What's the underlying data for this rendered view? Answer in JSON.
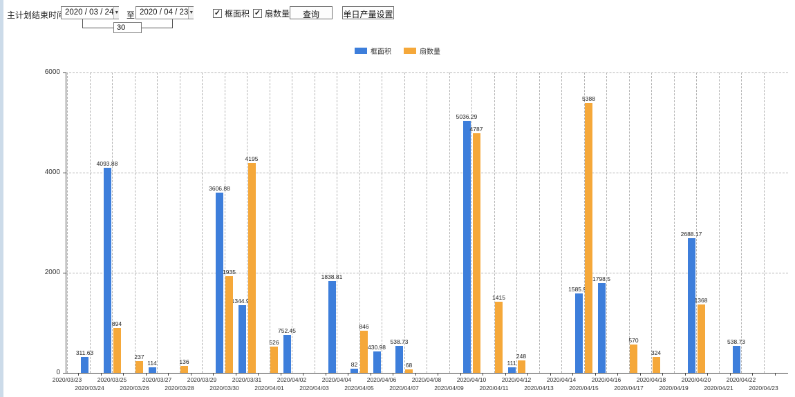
{
  "toolbar": {
    "plan_end_label": "主计划结束时间:",
    "date_from": "2020 / 03 / 24",
    "to_label": "至:",
    "date_to": "2020 / 04 / 23",
    "days_value": "30",
    "checkbox_frame_area": "框面积",
    "checkbox_sash_count": "扇数量",
    "check_glyph": "✓",
    "arrow_glyph": "▼",
    "query_button": "查询",
    "daily_output_button": "单日产量设置"
  },
  "legend": {
    "frame_area": "框面积",
    "sash_count": "扇数量"
  },
  "colors": {
    "frame_area": "#3d7edb",
    "sash_count": "#f5a83a",
    "axis": "#444444",
    "grid": "#b3b3b3"
  },
  "chart_data": {
    "type": "bar",
    "title": "",
    "xlabel": "",
    "ylabel": "",
    "ylim": [
      0,
      6000
    ],
    "yticks": [
      0,
      2000,
      4000,
      6000
    ],
    "grid": true,
    "legend_position": "top",
    "categories": [
      "2020/03/23",
      "2020/03/24",
      "2020/03/25",
      "2020/03/26",
      "2020/03/27",
      "2020/03/28",
      "2020/03/29",
      "2020/03/30",
      "2020/03/31",
      "2020/04/01",
      "2020/04/02",
      "2020/04/03",
      "2020/04/04",
      "2020/04/05",
      "2020/04/06",
      "2020/04/07",
      "2020/04/08",
      "2020/04/09",
      "2020/04/10",
      "2020/04/11",
      "2020/04/12",
      "2020/04/13",
      "2020/04/14",
      "2020/04/15",
      "2020/04/16",
      "2020/04/17",
      "2020/04/18",
      "2020/04/19",
      "2020/04/20",
      "2020/04/21",
      "2020/04/22",
      "2020/04/23"
    ],
    "series": [
      {
        "name": "框面积",
        "color": "#3d7edb",
        "values": [
          null,
          311.63,
          4093.88,
          null,
          114,
          null,
          null,
          3606.88,
          1344.95,
          null,
          752.45,
          null,
          1838.81,
          82,
          430.98,
          538.73,
          null,
          null,
          5036.29,
          null,
          111,
          null,
          null,
          1585.96,
          1798.5,
          null,
          null,
          null,
          2688.17,
          null,
          538.73,
          null
        ]
      },
      {
        "name": "扇数量",
        "color": "#f5a83a",
        "values": [
          null,
          null,
          894,
          237,
          null,
          136,
          null,
          1935,
          4195,
          526,
          null,
          null,
          null,
          846,
          null,
          68,
          null,
          null,
          4787,
          1415,
          248,
          null,
          null,
          5388,
          null,
          570,
          324,
          null,
          1368,
          null,
          null,
          null
        ]
      }
    ]
  }
}
